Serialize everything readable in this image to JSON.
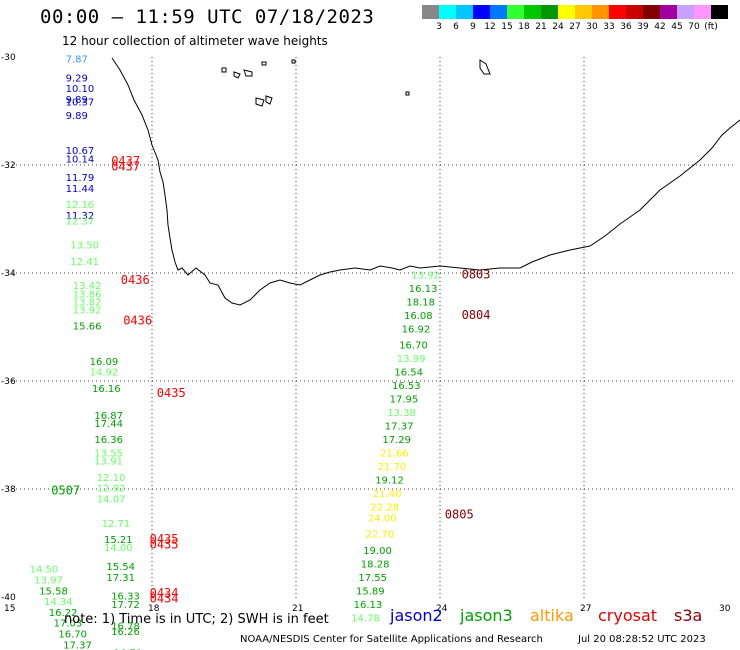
{
  "header": {
    "title": "00:00 – 11:59 UTC 07/18/2023",
    "subtitle": "12 hour collection of altimeter wave heights"
  },
  "legend": {
    "colors": [
      "#888888",
      "#00ffff",
      "#00c8ff",
      "#0000ff",
      "#0078ff",
      "#32ff32",
      "#00c800",
      "#009600",
      "#ffff00",
      "#ffc800",
      "#ff9600",
      "#ff0000",
      "#c80000",
      "#800000",
      "#a000a0",
      "#c8a0ff",
      "#ff96ff",
      "#000000"
    ],
    "labels": [
      "3",
      "6",
      "9",
      "12",
      "15",
      "18",
      "21",
      "24",
      "27",
      "30",
      "33",
      "36",
      "39",
      "42",
      "45",
      "70",
      "(ft)"
    ]
  },
  "axes": {
    "lat_labels": [
      "-30",
      "-32",
      "-34",
      "-36",
      "-38",
      "-40"
    ],
    "lon_labels": [
      "15",
      "18",
      "21",
      "24",
      "27",
      "30"
    ]
  },
  "footer": {
    "note": "note: 1) Time is in UTC; 2) SWH is in feet",
    "satellites": [
      {
        "name": "jason2",
        "color": "#0000cc"
      },
      {
        "name": "jason3",
        "color": "#00a000"
      },
      {
        "name": "altika",
        "color": "#ff9900"
      },
      {
        "name": "cryosat",
        "color": "#dd0000"
      },
      {
        "name": "s3a",
        "color": "#880000"
      }
    ],
    "credit": "NOAA/NESDIS Center for Satellite Applications and Research",
    "generated": "Jul 20 08:28:52 UTC 2023"
  },
  "observations": [
    {
      "lon": 16.2,
      "lat": -30.1,
      "v": "7.87",
      "c": "#3399ff"
    },
    {
      "lon": 16.2,
      "lat": -30.45,
      "v": "9.29",
      "c": "#0000cc"
    },
    {
      "lon": 16.2,
      "lat": -30.65,
      "v": "10.10",
      "c": "#0000cc"
    },
    {
      "lon": 16.2,
      "lat": -30.85,
      "v": "9.89",
      "c": "#0000cc"
    },
    {
      "lon": 16.2,
      "lat": -30.9,
      "v": "10.37",
      "c": "#0000cc"
    },
    {
      "lon": 16.2,
      "lat": -31.15,
      "v": "9.89",
      "c": "#0000cc"
    },
    {
      "lon": 16.2,
      "lat": -31.8,
      "v": "10.67",
      "c": "#0000cc"
    },
    {
      "lon": 16.2,
      "lat": -31.95,
      "v": "10.14",
      "c": "#0000cc"
    },
    {
      "lon": 16.2,
      "lat": -32.3,
      "v": "11.79",
      "c": "#0000cc"
    },
    {
      "lon": 16.2,
      "lat": -32.5,
      "v": "11.44",
      "c": "#0000cc"
    },
    {
      "lon": 16.2,
      "lat": -32.8,
      "v": "12.16",
      "c": "#66ff66"
    },
    {
      "lon": 16.2,
      "lat": -33.0,
      "v": "11.32",
      "c": "#0000cc"
    },
    {
      "lon": 16.2,
      "lat": -33.1,
      "v": "12.37",
      "c": "#66ff66"
    },
    {
      "lon": 16.3,
      "lat": -33.55,
      "v": "13.50",
      "c": "#66ff66"
    },
    {
      "lon": 16.3,
      "lat": -33.85,
      "v": "12.41",
      "c": "#66ff66"
    },
    {
      "lon": 16.35,
      "lat": -34.3,
      "v": "13.42",
      "c": "#66ff66"
    },
    {
      "lon": 16.35,
      "lat": -34.45,
      "v": "13.86",
      "c": "#66ff66"
    },
    {
      "lon": 16.35,
      "lat": -34.6,
      "v": "13.82",
      "c": "#66ff66"
    },
    {
      "lon": 16.35,
      "lat": -34.75,
      "v": "13.92",
      "c": "#66ff66"
    },
    {
      "lon": 16.35,
      "lat": -35.05,
      "v": "15.66",
      "c": "#00a000"
    },
    {
      "lon": 16.7,
      "lat": -35.7,
      "v": "16.09",
      "c": "#00a000"
    },
    {
      "lon": 16.7,
      "lat": -35.9,
      "v": "14.92",
      "c": "#66ff66"
    },
    {
      "lon": 16.75,
      "lat": -36.2,
      "v": "16.16",
      "c": "#00a000"
    },
    {
      "lon": 16.8,
      "lat": -36.7,
      "v": "16.87",
      "c": "#00a000"
    },
    {
      "lon": 16.8,
      "lat": -36.85,
      "v": "17.44",
      "c": "#00a000"
    },
    {
      "lon": 16.8,
      "lat": -37.15,
      "v": "16.36",
      "c": "#00a000"
    },
    {
      "lon": 16.8,
      "lat": -37.4,
      "v": "13.55",
      "c": "#66ff66"
    },
    {
      "lon": 16.8,
      "lat": -37.55,
      "v": "13.91",
      "c": "#66ff66"
    },
    {
      "lon": 16.85,
      "lat": -37.85,
      "v": "12.10",
      "c": "#66ff66"
    },
    {
      "lon": 16.85,
      "lat": -38.05,
      "v": "12.92",
      "c": "#66ff66"
    },
    {
      "lon": 16.85,
      "lat": -38.25,
      "v": "14.07",
      "c": "#66ff66"
    },
    {
      "lon": 16.95,
      "lat": -38.7,
      "v": "12.71",
      "c": "#66ff66"
    },
    {
      "lon": 17.0,
      "lat": -39.0,
      "v": "15.21",
      "c": "#00a000"
    },
    {
      "lon": 17.0,
      "lat": -39.15,
      "v": "14.00",
      "c": "#66ff66"
    },
    {
      "lon": 17.05,
      "lat": -39.5,
      "v": "15.54",
      "c": "#00a000"
    },
    {
      "lon": 17.05,
      "lat": -39.7,
      "v": "17.31",
      "c": "#00a000"
    },
    {
      "lon": 17.15,
      "lat": -40.05,
      "v": "16.33",
      "c": "#00a000"
    },
    {
      "lon": 17.15,
      "lat": -40.2,
      "v": "17.72",
      "c": "#00a000"
    },
    {
      "lon": 17.15,
      "lat": -40.6,
      "v": "16.78",
      "c": "#00a000"
    },
    {
      "lon": 17.15,
      "lat": -40.7,
      "v": "16.26",
      "c": "#00a000"
    },
    {
      "lon": 17.2,
      "lat": -41.1,
      "v": "16.71",
      "c": "#00a000"
    },
    {
      "lon": 17.2,
      "lat": -41.2,
      "v": "15.58",
      "c": "#00a000"
    },
    {
      "lon": 15.45,
      "lat": -39.55,
      "v": "14.50",
      "c": "#66ff66"
    },
    {
      "lon": 15.55,
      "lat": -39.75,
      "v": "13.97",
      "c": "#66ff66"
    },
    {
      "lon": 15.65,
      "lat": -39.95,
      "v": "15.58",
      "c": "#00a000"
    },
    {
      "lon": 15.75,
      "lat": -40.15,
      "v": "14.34",
      "c": "#66ff66"
    },
    {
      "lon": 15.85,
      "lat": -40.35,
      "v": "16.22",
      "c": "#00a000"
    },
    {
      "lon": 15.95,
      "lat": -40.55,
      "v": "17.03",
      "c": "#00a000"
    },
    {
      "lon": 16.05,
      "lat": -40.75,
      "v": "16.70",
      "c": "#00a000"
    },
    {
      "lon": 16.15,
      "lat": -40.95,
      "v": "17.37",
      "c": "#00a000"
    },
    {
      "lon": 16.25,
      "lat": -41.15,
      "v": "16.98",
      "c": "#00a000"
    },
    {
      "lon": 23.4,
      "lat": -34.1,
      "v": "13.92",
      "c": "#66ff66"
    },
    {
      "lon": 23.35,
      "lat": -34.35,
      "v": "16.13",
      "c": "#00a000"
    },
    {
      "lon": 23.3,
      "lat": -34.6,
      "v": "18.18",
      "c": "#00a000"
    },
    {
      "lon": 23.25,
      "lat": -34.85,
      "v": "16.08",
      "c": "#00a000"
    },
    {
      "lon": 23.2,
      "lat": -35.1,
      "v": "16.92",
      "c": "#00a000"
    },
    {
      "lon": 23.15,
      "lat": -35.4,
      "v": "16.70",
      "c": "#00a000"
    },
    {
      "lon": 23.1,
      "lat": -35.65,
      "v": "13.99",
      "c": "#66ff66"
    },
    {
      "lon": 23.05,
      "lat": -35.9,
      "v": "16.54",
      "c": "#00a000"
    },
    {
      "lon": 23.0,
      "lat": -36.15,
      "v": "16.53",
      "c": "#00a000"
    },
    {
      "lon": 22.95,
      "lat": -36.4,
      "v": "17.95",
      "c": "#00a000"
    },
    {
      "lon": 22.9,
      "lat": -36.65,
      "v": "13.38",
      "c": "#66ff66"
    },
    {
      "lon": 22.85,
      "lat": -36.9,
      "v": "17.37",
      "c": "#00a000"
    },
    {
      "lon": 22.8,
      "lat": -37.15,
      "v": "17.29",
      "c": "#00a000"
    },
    {
      "lon": 22.75,
      "lat": -37.4,
      "v": "21.66",
      "c": "#ffee00"
    },
    {
      "lon": 22.7,
      "lat": -37.65,
      "v": "21.70",
      "c": "#ffee00"
    },
    {
      "lon": 22.65,
      "lat": -37.9,
      "v": "19.12",
      "c": "#00a000"
    },
    {
      "lon": 22.6,
      "lat": -38.15,
      "v": "21.40",
      "c": "#ffee00"
    },
    {
      "lon": 22.55,
      "lat": -38.4,
      "v": "22.28",
      "c": "#ffee00"
    },
    {
      "lon": 22.5,
      "lat": -38.6,
      "v": "24.00",
      "c": "#ffee00"
    },
    {
      "lon": 22.45,
      "lat": -38.9,
      "v": "22.70",
      "c": "#ffee00"
    },
    {
      "lon": 22.4,
      "lat": -39.2,
      "v": "19.00",
      "c": "#00a000"
    },
    {
      "lon": 22.35,
      "lat": -39.45,
      "v": "18.28",
      "c": "#00a000"
    },
    {
      "lon": 22.3,
      "lat": -39.7,
      "v": "17.55",
      "c": "#00a000"
    },
    {
      "lon": 22.25,
      "lat": -39.95,
      "v": "15.89",
      "c": "#00a000"
    },
    {
      "lon": 22.2,
      "lat": -40.2,
      "v": "16.13",
      "c": "#00a000"
    },
    {
      "lon": 22.15,
      "lat": -40.45,
      "v": "14.78",
      "c": "#66ff66"
    }
  ],
  "pass_times": [
    {
      "lon": 17.15,
      "lat": -32.0,
      "t": "0437",
      "c": "#ff0000"
    },
    {
      "lon": 17.15,
      "lat": -32.1,
      "t": "0437",
      "c": "#ff0000"
    },
    {
      "lon": 17.35,
      "lat": -34.2,
      "t": "0436",
      "c": "#ff0000"
    },
    {
      "lon": 17.4,
      "lat": -34.95,
      "t": "0436",
      "c": "#ff0000"
    },
    {
      "lon": 18.1,
      "lat": -36.3,
      "t": "0435",
      "c": "#ff0000"
    },
    {
      "lon": 17.95,
      "lat": -39.0,
      "t": "0435",
      "c": "#ff0000"
    },
    {
      "lon": 17.95,
      "lat": -39.1,
      "t": "0435",
      "c": "#ff0000"
    },
    {
      "lon": 17.95,
      "lat": -40.0,
      "t": "0434",
      "c": "#ff0000"
    },
    {
      "lon": 17.95,
      "lat": -40.1,
      "t": "0434",
      "c": "#ff0000"
    },
    {
      "lon": 15.9,
      "lat": -38.1,
      "t": "0507",
      "c": "#00a000"
    },
    {
      "lon": 24.45,
      "lat": -34.1,
      "t": "0803",
      "c": "#880000"
    },
    {
      "lon": 24.45,
      "lat": -34.85,
      "t": "0804",
      "c": "#880000"
    },
    {
      "lon": 24.1,
      "lat": -38.55,
      "t": "0805",
      "c": "#880000"
    }
  ]
}
